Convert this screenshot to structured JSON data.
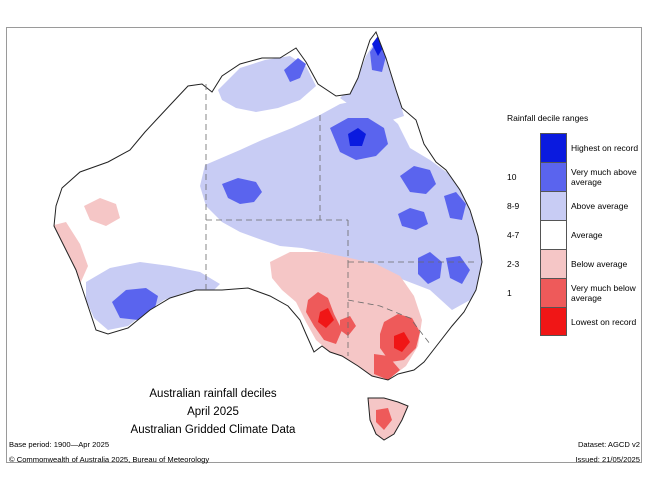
{
  "map_title": {
    "line1": "Australian rainfall deciles",
    "line2": "April 2025",
    "line3": "Australian Gridded Climate Data"
  },
  "legend": {
    "title": "Rainfall decile ranges",
    "items": [
      {
        "range": "",
        "label": "Highest on record",
        "color": "#0a1adf"
      },
      {
        "range": "10",
        "label": "Very much above average",
        "color": "#5a64ee"
      },
      {
        "range": "8-9",
        "label": "Above average",
        "color": "#c8ccf4"
      },
      {
        "range": "4-7",
        "label": "Average",
        "color": "#ffffff"
      },
      {
        "range": "2-3",
        "label": "Below average",
        "color": "#f5c6c6"
      },
      {
        "range": "1",
        "label": "Very much below average",
        "color": "#ee5a5a"
      },
      {
        "range": "",
        "label": "Lowest on record",
        "color": "#f01616"
      }
    ]
  },
  "footer": {
    "base_period": "Base period: 1900—Apr 2025",
    "dataset": "Dataset: AGCD v2",
    "copyright": "© Commonwealth of Australia 2025, Bureau of Meteorology",
    "issued": "Issued: 21/05/2025"
  }
}
